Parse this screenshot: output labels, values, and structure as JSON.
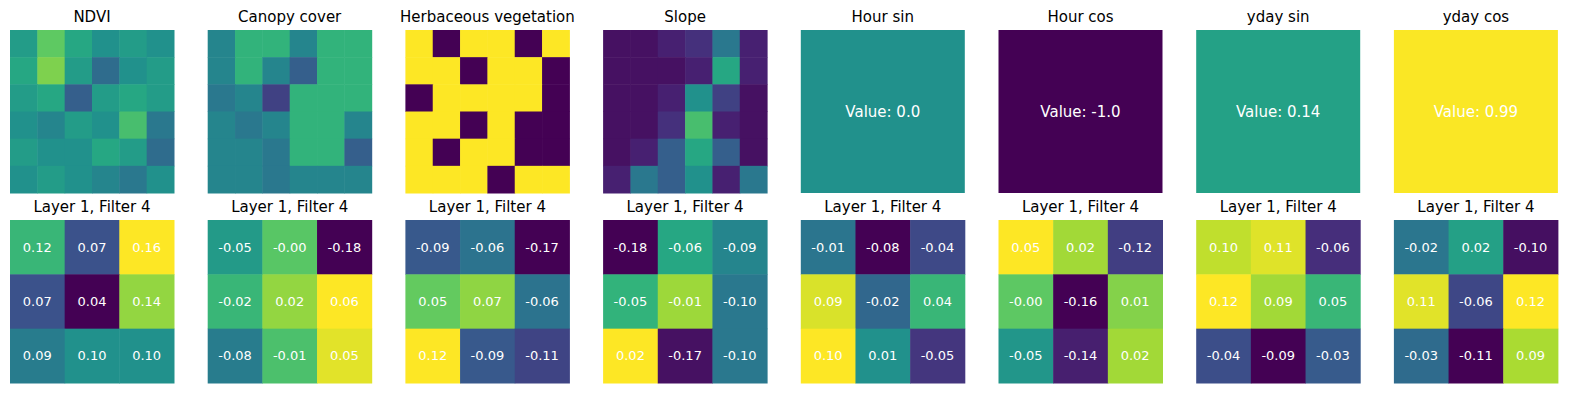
{
  "chart_data": [
    {
      "type": "image",
      "title": "NDVI",
      "range": [
        0,
        1
      ],
      "cells": [
        [
          0.55,
          0.75,
          0.6,
          0.5,
          0.55,
          0.5
        ],
        [
          0.6,
          0.8,
          0.55,
          0.35,
          0.5,
          0.55
        ],
        [
          0.55,
          0.6,
          0.3,
          0.55,
          0.6,
          0.55
        ],
        [
          0.5,
          0.45,
          0.55,
          0.5,
          0.7,
          0.4
        ],
        [
          0.55,
          0.5,
          0.5,
          0.6,
          0.55,
          0.35
        ],
        [
          0.5,
          0.55,
          0.5,
          0.45,
          0.4,
          0.5
        ]
      ]
    },
    {
      "type": "image",
      "title": "Canopy cover",
      "range": [
        0,
        1
      ],
      "cells": [
        [
          0.45,
          0.65,
          0.65,
          0.45,
          0.65,
          0.65
        ],
        [
          0.45,
          0.65,
          0.45,
          0.3,
          0.65,
          0.65
        ],
        [
          0.4,
          0.45,
          0.2,
          0.65,
          0.65,
          0.65
        ],
        [
          0.45,
          0.4,
          0.45,
          0.65,
          0.65,
          0.45
        ],
        [
          0.45,
          0.45,
          0.4,
          0.65,
          0.65,
          0.3
        ],
        [
          0.45,
          0.45,
          0.4,
          0.45,
          0.45,
          0.45
        ]
      ]
    },
    {
      "type": "image",
      "title": "Herbaceous vegetation",
      "range": [
        0,
        1
      ],
      "cells": [
        [
          1,
          0,
          1,
          1,
          0,
          1
        ],
        [
          1,
          1,
          0,
          1,
          1,
          0
        ],
        [
          0,
          1,
          1,
          1,
          1,
          0
        ],
        [
          1,
          1,
          0,
          1,
          0,
          0
        ],
        [
          1,
          0,
          1,
          1,
          0,
          0
        ],
        [
          1,
          1,
          1,
          0,
          1,
          1
        ]
      ]
    },
    {
      "type": "image",
      "title": "Slope",
      "range": [
        0,
        1
      ],
      "cells": [
        [
          0.05,
          0.05,
          0.1,
          0.15,
          0.4,
          0.1
        ],
        [
          0.05,
          0.05,
          0.05,
          0.1,
          0.6,
          0.1
        ],
        [
          0.05,
          0.05,
          0.1,
          0.5,
          0.2,
          0.05
        ],
        [
          0.05,
          0.05,
          0.15,
          0.7,
          0.1,
          0.05
        ],
        [
          0.05,
          0.1,
          0.3,
          0.6,
          0.3,
          0.05
        ],
        [
          0.1,
          0.4,
          0.3,
          0.5,
          0.1,
          0.4
        ]
      ]
    },
    {
      "type": "constant",
      "title": "Hour sin",
      "range": [
        -1,
        1
      ],
      "value": 0,
      "label": "Value: 0.0"
    },
    {
      "type": "constant",
      "title": "Hour cos",
      "range": [
        -1,
        1
      ],
      "value": -1,
      "label": "Value: -1.0"
    },
    {
      "type": "constant",
      "title": "yday sin",
      "range": [
        -1,
        1
      ],
      "value": 0.14,
      "label": "Value: 0.14"
    },
    {
      "type": "constant",
      "title": "yday cos",
      "range": [
        -1,
        1
      ],
      "value": 0.99,
      "label": "Value: 0.99"
    },
    {
      "type": "heatmap",
      "title": "Layer 1, Filter 4",
      "cells": [
        [
          0.12,
          0.07,
          0.16
        ],
        [
          0.07,
          0.04,
          0.14
        ],
        [
          0.09,
          0.1,
          0.1
        ]
      ]
    },
    {
      "type": "heatmap",
      "title": "Layer 1, Filter 4",
      "cells": [
        [
          -0.05,
          {
            "value": -0.003,
            "label": "-0.00"
          },
          -0.18
        ],
        [
          -0.02,
          0.02,
          0.06
        ],
        [
          -0.08,
          -0.01,
          0.05
        ]
      ]
    },
    {
      "type": "heatmap",
      "title": "Layer 1, Filter 4",
      "cells": [
        [
          -0.09,
          -0.06,
          -0.17
        ],
        [
          0.05,
          0.07,
          -0.06
        ],
        [
          0.12,
          -0.09,
          -0.11
        ]
      ]
    },
    {
      "type": "heatmap",
      "title": "Layer 1, Filter 4",
      "cells": [
        [
          -0.18,
          -0.06,
          -0.09
        ],
        [
          -0.05,
          -0.01,
          -0.1
        ],
        [
          0.02,
          -0.17,
          -0.1
        ]
      ]
    },
    {
      "type": "heatmap",
      "title": "Layer 1, Filter 4",
      "cells": [
        [
          -0.01,
          -0.08,
          -0.04
        ],
        [
          0.09,
          -0.02,
          0.04
        ],
        [
          0.1,
          0.01,
          -0.05
        ]
      ]
    },
    {
      "type": "heatmap",
      "title": "Layer 1, Filter 4",
      "cells": [
        [
          0.05,
          0.02,
          -0.12
        ],
        [
          {
            "value": -0.003,
            "label": "-0.00"
          },
          -0.16,
          0.01
        ],
        [
          -0.05,
          -0.14,
          0.02
        ]
      ]
    },
    {
      "type": "heatmap",
      "title": "Layer 1, Filter 4",
      "cells": [
        [
          0.1,
          0.11,
          -0.06
        ],
        [
          0.12,
          0.09,
          0.05
        ],
        [
          -0.04,
          -0.09,
          -0.03
        ]
      ]
    },
    {
      "type": "heatmap",
      "title": "Layer 1, Filter 4",
      "cells": [
        [
          -0.02,
          0.02,
          -0.1
        ],
        [
          0.11,
          -0.06,
          0.12
        ],
        [
          -0.03,
          -0.11,
          0.09
        ]
      ]
    }
  ]
}
